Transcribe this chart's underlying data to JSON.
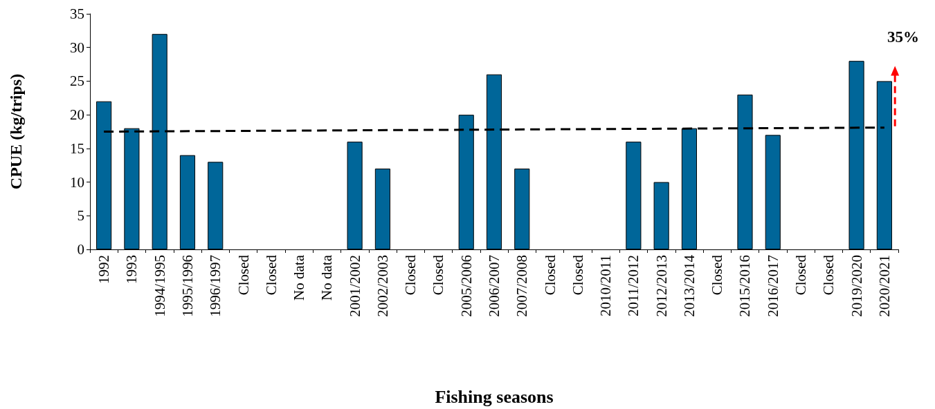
{
  "chart_data": {
    "type": "bar",
    "xlabel": "Fishing seasons",
    "ylabel": "CPUE (kg/trips)",
    "categories": [
      "1992",
      "1993",
      "1994/1995",
      "1995/1996",
      "1996/1997",
      "Closed",
      "Closed",
      "No data",
      "No data",
      "2001/2002",
      "2002/2003",
      "Closed",
      "Closed",
      "2005/2006",
      "2006/2007",
      "2007/2008",
      "Closed",
      "Closed",
      "2010/2011",
      "2011/2012",
      "2012/2013",
      "2013/2014",
      "Closed",
      "2015/2016",
      "2016/2017",
      "Closed",
      "Closed",
      "2019/2020",
      "2020/2021"
    ],
    "series": [
      {
        "color": "#006699",
        "values": [
          22,
          18,
          32,
          14,
          13,
          null,
          null,
          null,
          null,
          16,
          12,
          null,
          null,
          20,
          26,
          12,
          null,
          null,
          null,
          16,
          10,
          18,
          null,
          23,
          17,
          null,
          null,
          28,
          25
        ]
      },
      {
        "type": "line",
        "color": "#000000",
        "line_style": "dashed",
        "marker": "none",
        "values": [
          17.5,
          null,
          null,
          null,
          null,
          null,
          null,
          null,
          null,
          null,
          null,
          null,
          null,
          null,
          null,
          null,
          null,
          null,
          null,
          null,
          null,
          null,
          null,
          null,
          null,
          null,
          null,
          null,
          18.1
        ]
      }
    ],
    "ylim": [
      0,
      35
    ],
    "yticks": [
      0,
      5,
      10,
      15,
      20,
      25,
      30,
      35
    ],
    "grid": false,
    "annotations": [
      "35%"
    ]
  }
}
